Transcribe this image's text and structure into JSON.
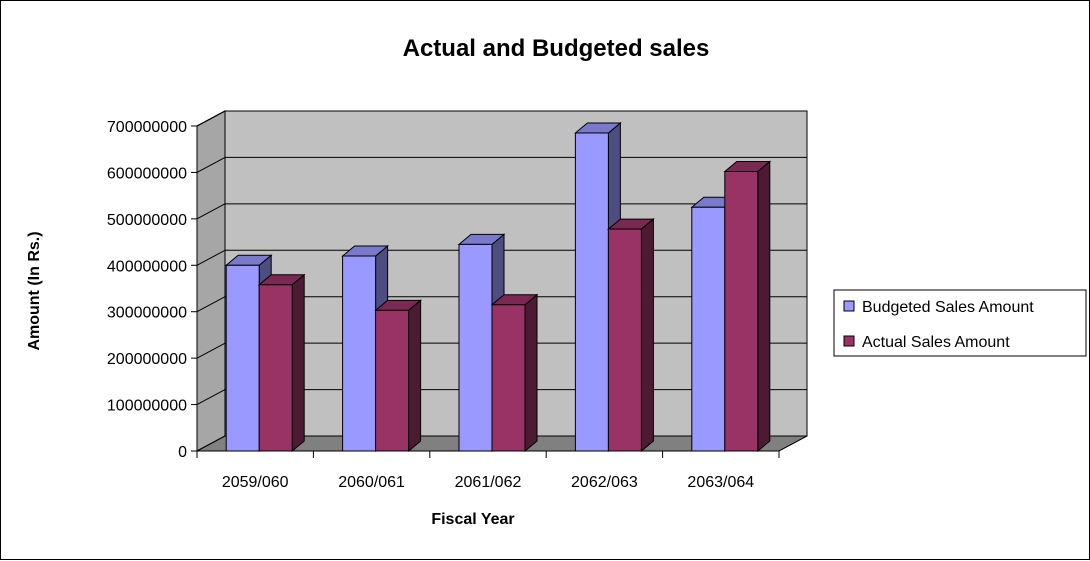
{
  "chart_data": {
    "type": "bar",
    "title": "Actual and Budgeted sales",
    "xlabel": "Fiscal Year",
    "ylabel": "Amount (In Rs.)",
    "categories": [
      "2059/060",
      "2060/061",
      "2061/062",
      "2062/063",
      "2063/064"
    ],
    "series": [
      {
        "name": "Budgeted Sales Amount",
        "color": "#9999ff",
        "values": [
          400000000,
          420000000,
          445000000,
          685000000,
          525000000
        ]
      },
      {
        "name": "Actual Sales Amount",
        "color": "#993366",
        "values": [
          358000000,
          303000000,
          315000000,
          478000000,
          602000000
        ]
      }
    ],
    "ylim": [
      0,
      700000000
    ],
    "yticks": [
      "0",
      "100000000",
      "200000000",
      "300000000",
      "400000000",
      "500000000",
      "600000000",
      "700000000"
    ],
    "grid": true,
    "legend_position": "right",
    "style": "3d-clustered-column",
    "wall_color": "#c0c0c0",
    "floor_color": "#808080"
  }
}
